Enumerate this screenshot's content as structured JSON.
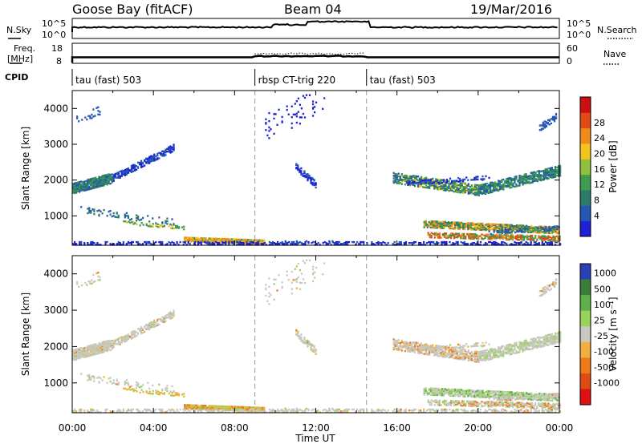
{
  "header": {
    "station": "Goose Bay (fitACF)",
    "beam": "Beam 04",
    "date": "19/Mar/2016"
  },
  "params": {
    "nsky_label": "N.Sky",
    "nsky_ticks": [
      "10^5",
      "10^0"
    ],
    "nsearch_label": "N.Search",
    "nsearch_ticks": [
      "10^5",
      "10^0"
    ],
    "freq_label_line1": "Freq.",
    "freq_label_line2": "[MHz]",
    "freq_ticks": [
      "18",
      "8"
    ],
    "nave_label": "Nave",
    "nave_ticks": [
      "60",
      "0"
    ],
    "cpid_label": "CPID",
    "cpid_segments": [
      {
        "label": "tau (fast) 503",
        "start_h": 0,
        "end_h": 9.0
      },
      {
        "label": "rbsp CT-trig 220",
        "start_h": 9.0,
        "end_h": 14.5
      },
      {
        "label": "tau (fast) 503",
        "start_h": 14.5,
        "end_h": 24
      }
    ]
  },
  "chart_data": [
    {
      "type": "heatmap",
      "name": "power-panel",
      "ylabel": "Slant Range [km]",
      "xlabel": "",
      "xlim": [
        0,
        24
      ],
      "ylim": [
        180,
        4500
      ],
      "y_ticks": [
        "1000",
        "2000",
        "3000",
        "4000"
      ],
      "colorbar": {
        "label": "Power [dB]",
        "ticks": [
          "4",
          "8",
          "12",
          "16",
          "20",
          "24",
          "28"
        ],
        "colors": [
          "#1f1fd6",
          "#2456b4",
          "#2c7a6a",
          "#3f9b50",
          "#8fbf3c",
          "#f3c31e",
          "#f08a1a",
          "#e24a14",
          "#cc1010"
        ]
      },
      "features": [
        {
          "desc": "band",
          "t": [
            0.0,
            5.0
          ],
          "range": [
            1800,
            2900
          ]
        },
        {
          "desc": "band",
          "t": [
            15.8,
            24.0
          ],
          "range": [
            1700,
            2400
          ]
        },
        {
          "desc": "band",
          "t": [
            17.5,
            24.0
          ],
          "range": [
            500,
            800
          ]
        },
        {
          "desc": "band",
          "t": [
            6.0,
            9.0
          ],
          "range": [
            280,
            400
          ]
        }
      ]
    },
    {
      "type": "heatmap",
      "name": "velocity-panel",
      "ylabel": "Slant Range [km]",
      "xlabel": "Time UT",
      "xlim": [
        0,
        24
      ],
      "ylim": [
        180,
        4500
      ],
      "x_ticks": [
        "00:00",
        "04:00",
        "08:00",
        "12:00",
        "16:00",
        "20:00",
        "00:00"
      ],
      "y_ticks": [
        "1000",
        "2000",
        "3000",
        "4000"
      ],
      "colorbar": {
        "label": "Velocity [m s⁻¹]",
        "ticks": [
          "1000",
          "500",
          "100",
          "25",
          "-25",
          "-100",
          "-500",
          "-1000"
        ],
        "colors": [
          "#2a3fb8",
          "#3a7d3a",
          "#5fb04a",
          "#99d35a",
          "#c8c8c0",
          "#f0b040",
          "#f07a18",
          "#e24a14",
          "#e01010"
        ]
      }
    }
  ],
  "colors": {
    "gray_bg": "#c8c8c0",
    "dashed": "#9a9a9a"
  }
}
